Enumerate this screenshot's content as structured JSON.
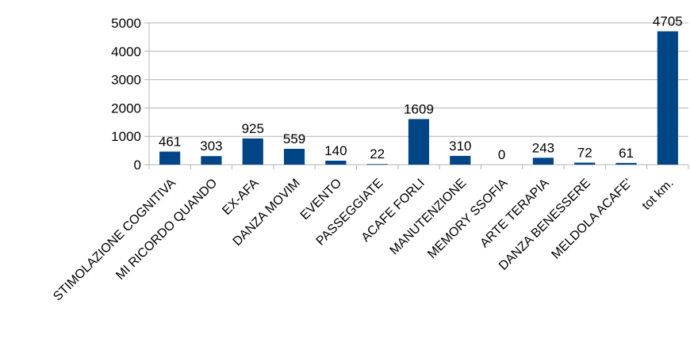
{
  "chart_data": {
    "type": "bar",
    "categories": [
      "STIMOLAZIONE COGNITIVA",
      "MI RICORDO QUANDO",
      "EX-AFA",
      "DANZA MOVIM",
      "EVENTO",
      "PASSEGGIATE",
      "ACAFE FORLI",
      "MANUTENZIONE",
      "MEMORY SSOFIA",
      "ARTE TERAPIA",
      "DANZA BENESSERE",
      "MELDOLA ACAFE'",
      "tot km."
    ],
    "values": [
      461,
      303,
      925,
      559,
      140,
      22,
      1609,
      310,
      0,
      243,
      72,
      61,
      4705
    ],
    "data_labels": [
      "461",
      "303",
      "925",
      "559",
      "140",
      "22",
      "1609",
      "310",
      "0",
      "243",
      "72",
      "61",
      "4705"
    ],
    "ylim": [
      0,
      5000
    ],
    "yticks": [
      "0",
      "1000",
      "2000",
      "3000",
      "4000",
      "5000"
    ],
    "grid": true,
    "legend": "none",
    "bar_color": "#004586",
    "grid_color": "#b3b3b3"
  }
}
